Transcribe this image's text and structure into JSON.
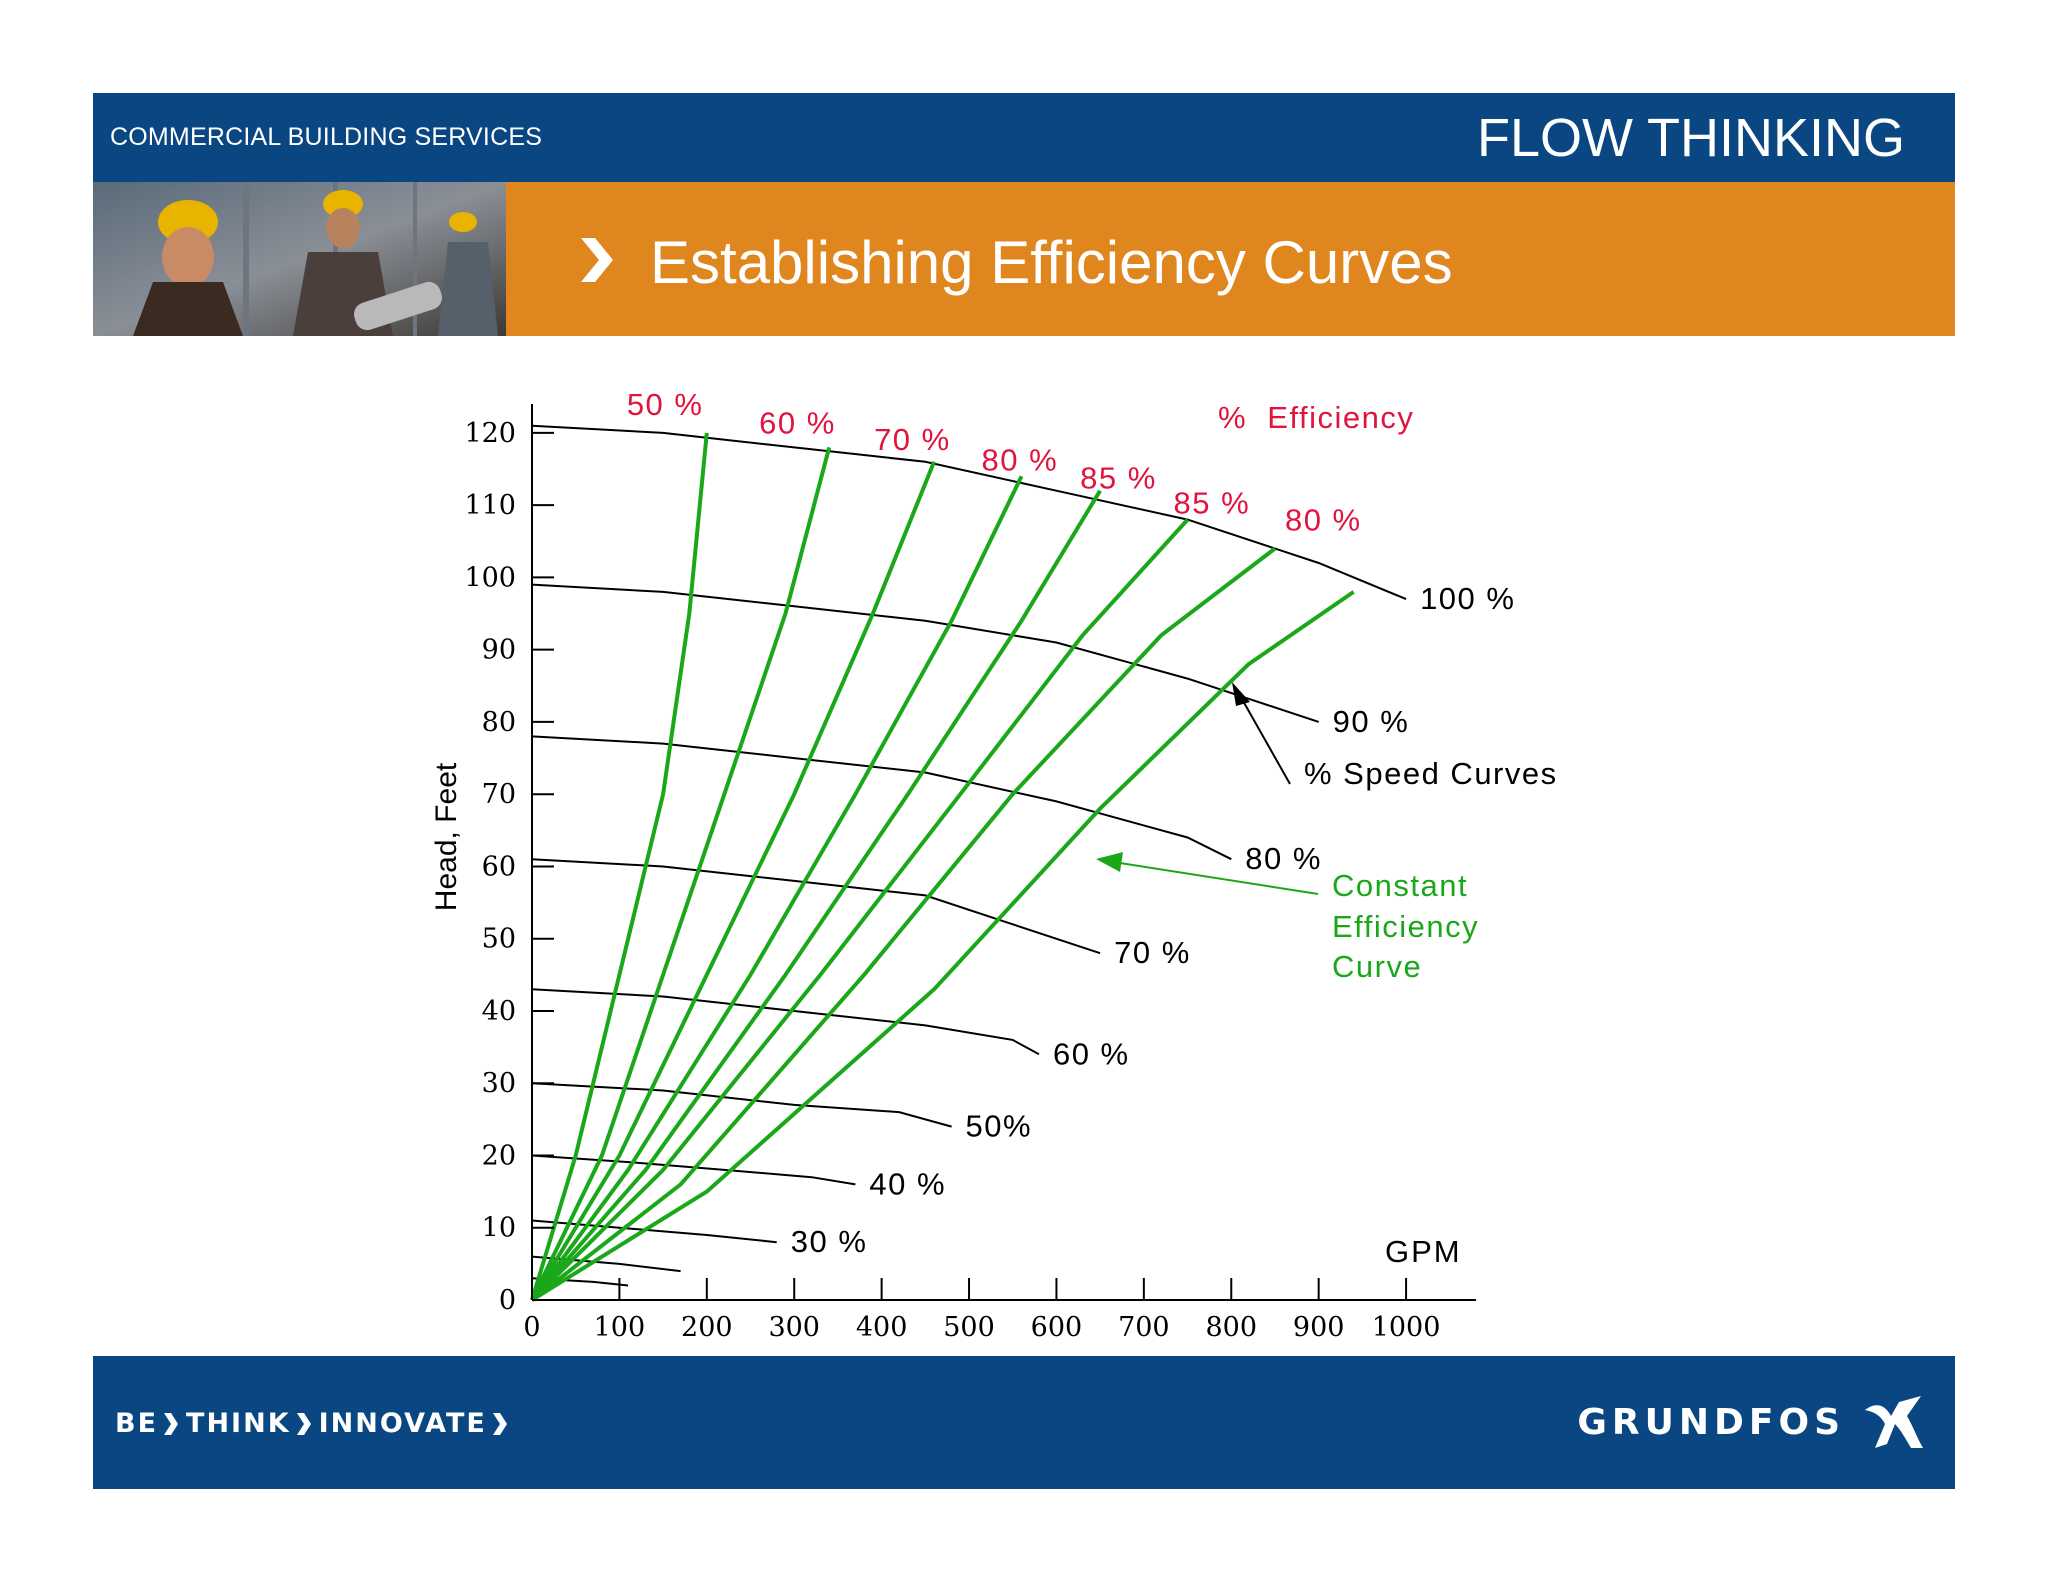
{
  "header": {
    "company_label": "COMMERCIAL BUILDING SERVICES",
    "tagline": "FLOW THINKING",
    "title": "Establishing Efficiency Curves"
  },
  "footer": {
    "slogan_parts": [
      "BE",
      "THINK",
      "INNOVATE"
    ],
    "brand": "GRUNDFOS"
  },
  "colors": {
    "header_blue": "#0a4782",
    "title_orange": "#e0861f",
    "efficiency_red": "#e0143c",
    "constant_efficiency_green": "#1aa81a",
    "speed_curve_black": "#000000"
  },
  "icons": {
    "title": "chevron-right-icon",
    "brand": "grundfos-logo-icon",
    "photo": "workers-photo"
  },
  "chart_data": {
    "type": "line",
    "xlabel": "GPM",
    "ylabel": "Head, Feet",
    "xlim": [
      0,
      1080
    ],
    "ylim": [
      0,
      124
    ],
    "x_ticks": [
      0,
      100,
      200,
      300,
      400,
      500,
      600,
      700,
      800,
      900,
      1000
    ],
    "y_ticks": [
      0,
      10,
      20,
      30,
      40,
      50,
      60,
      70,
      80,
      90,
      100,
      110,
      120
    ],
    "speed_curves_label": "% Speed Curves",
    "constant_efficiency_label": [
      "Constant",
      "Efficiency",
      "Curve"
    ],
    "efficiency_title": "%  Efficiency",
    "speed_curves": [
      {
        "label": "100 %",
        "points": [
          [
            0,
            121
          ],
          [
            150,
            120
          ],
          [
            300,
            118
          ],
          [
            450,
            116
          ],
          [
            600,
            112
          ],
          [
            750,
            108
          ],
          [
            900,
            102
          ],
          [
            1000,
            97
          ]
        ]
      },
      {
        "label": "90 %",
        "points": [
          [
            0,
            99
          ],
          [
            150,
            98
          ],
          [
            300,
            96
          ],
          [
            450,
            94
          ],
          [
            600,
            91
          ],
          [
            750,
            86
          ],
          [
            900,
            80
          ]
        ]
      },
      {
        "label": "80 %",
        "points": [
          [
            0,
            78
          ],
          [
            150,
            77
          ],
          [
            300,
            75
          ],
          [
            450,
            73
          ],
          [
            600,
            69
          ],
          [
            750,
            64
          ],
          [
            800,
            61
          ]
        ]
      },
      {
        "label": "70 %",
        "points": [
          [
            0,
            61
          ],
          [
            150,
            60
          ],
          [
            300,
            58
          ],
          [
            450,
            56
          ],
          [
            550,
            52
          ],
          [
            650,
            48
          ]
        ]
      },
      {
        "label": "60 %",
        "points": [
          [
            0,
            43
          ],
          [
            150,
            42
          ],
          [
            300,
            40
          ],
          [
            450,
            38
          ],
          [
            550,
            36
          ],
          [
            580,
            34
          ]
        ]
      },
      {
        "label": "50%",
        "points": [
          [
            0,
            30
          ],
          [
            150,
            29
          ],
          [
            300,
            27
          ],
          [
            420,
            26
          ],
          [
            480,
            24
          ]
        ]
      },
      {
        "label": "40 %",
        "points": [
          [
            0,
            20
          ],
          [
            120,
            19
          ],
          [
            220,
            18
          ],
          [
            320,
            17
          ],
          [
            370,
            16
          ]
        ]
      },
      {
        "label": "30 %",
        "points": [
          [
            0,
            11
          ],
          [
            100,
            10
          ],
          [
            200,
            9
          ],
          [
            280,
            8
          ]
        ]
      },
      {
        "label": "",
        "points": [
          [
            0,
            6
          ],
          [
            100,
            5
          ],
          [
            170,
            4
          ]
        ]
      },
      {
        "label": "",
        "points": [
          [
            0,
            3
          ],
          [
            70,
            2.5
          ],
          [
            110,
            2
          ]
        ]
      }
    ],
    "efficiency_curves": [
      {
        "label": "50 %",
        "points": [
          [
            0,
            0
          ],
          [
            50,
            20
          ],
          [
            100,
            45
          ],
          [
            150,
            70
          ],
          [
            180,
            95
          ],
          [
            200,
            120
          ]
        ]
      },
      {
        "label": "60 %",
        "points": [
          [
            0,
            0
          ],
          [
            80,
            20
          ],
          [
            150,
            45
          ],
          [
            220,
            70
          ],
          [
            290,
            95
          ],
          [
            340,
            118
          ]
        ]
      },
      {
        "label": "70 %",
        "points": [
          [
            0,
            0
          ],
          [
            100,
            20
          ],
          [
            200,
            45
          ],
          [
            300,
            70
          ],
          [
            390,
            95
          ],
          [
            460,
            116
          ]
        ]
      },
      {
        "label": "80 %",
        "points": [
          [
            0,
            0
          ],
          [
            110,
            18
          ],
          [
            250,
            45
          ],
          [
            370,
            70
          ],
          [
            480,
            94
          ],
          [
            560,
            114
          ]
        ]
      },
      {
        "label": "85 %",
        "points": [
          [
            0,
            0
          ],
          [
            130,
            18
          ],
          [
            290,
            45
          ],
          [
            430,
            70
          ],
          [
            560,
            94
          ],
          [
            650,
            112
          ]
        ]
      },
      {
        "label": "85 %",
        "points": [
          [
            0,
            0
          ],
          [
            150,
            18
          ],
          [
            330,
            45
          ],
          [
            490,
            70
          ],
          [
            630,
            92
          ],
          [
            750,
            108
          ]
        ]
      },
      {
        "label": "80 %",
        "points": [
          [
            0,
            0
          ],
          [
            170,
            16
          ],
          [
            380,
            45
          ],
          [
            550,
            70
          ],
          [
            720,
            92
          ],
          [
            850,
            104
          ]
        ]
      },
      {
        "label": "",
        "points": [
          [
            0,
            0
          ],
          [
            200,
            15
          ],
          [
            460,
            43
          ],
          [
            650,
            68
          ],
          [
            820,
            88
          ],
          [
            940,
            98
          ]
        ]
      }
    ]
  }
}
